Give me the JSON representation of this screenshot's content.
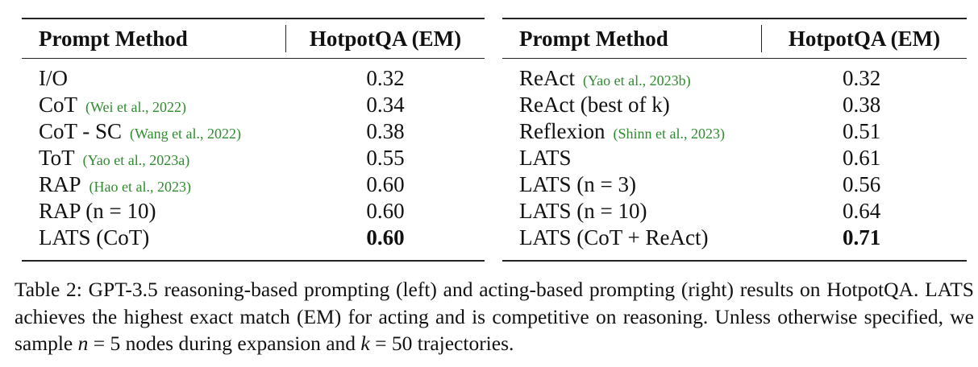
{
  "left_table": {
    "headers": [
      "Prompt Method",
      "HotpotQA (EM)"
    ],
    "rows": [
      {
        "method": "I/O",
        "cite": "",
        "em": "0.32",
        "bold": false
      },
      {
        "method": "CoT",
        "cite": "(Wei et al., 2022)",
        "em": "0.34",
        "bold": false
      },
      {
        "method": "CoT - SC",
        "cite": "(Wang et al., 2022)",
        "em": "0.38",
        "bold": false
      },
      {
        "method": "ToT",
        "cite": "(Yao et al., 2023a)",
        "em": "0.55",
        "bold": false
      },
      {
        "method": "RAP",
        "cite": "(Hao et al., 2023)",
        "em": "0.60",
        "bold": false
      },
      {
        "method": "RAP (n = 10)",
        "cite": "",
        "em": "0.60",
        "bold": false
      },
      {
        "method": "LATS (CoT)",
        "cite": "",
        "em": "0.60",
        "bold": true
      }
    ]
  },
  "right_table": {
    "headers": [
      "Prompt Method",
      "HotpotQA (EM)"
    ],
    "rows": [
      {
        "method": "ReAct",
        "cite": "(Yao et al., 2023b)",
        "em": "0.32",
        "bold": false
      },
      {
        "method": "ReAct (best of k)",
        "cite": "",
        "em": "0.38",
        "bold": false
      },
      {
        "method": "Reflexion",
        "cite": "(Shinn et al., 2023)",
        "em": "0.51",
        "bold": false
      },
      {
        "method": "LATS",
        "cite": "",
        "em": "0.61",
        "bold": false
      },
      {
        "method": "LATS (n = 3)",
        "cite": "",
        "em": "0.56",
        "bold": false
      },
      {
        "method": "LATS (n = 10)",
        "cite": "",
        "em": "0.64",
        "bold": false
      },
      {
        "method": "LATS (CoT + ReAct)",
        "cite": "",
        "em": "0.71",
        "bold": true
      }
    ]
  },
  "caption": {
    "part1": "Table 2: GPT-3.5 reasoning-based prompting (left) and acting-based prompting (right) results on HotpotQA. LATS achieves the highest exact match (EM) for acting and is competitive on reasoning. Unless otherwise specified, we sample ",
    "math1": "n",
    "part2": " = 5 nodes during expansion and ",
    "math2": "k",
    "part3": " = 50 trajectories."
  },
  "colors": {
    "citation": "#2e8b2e",
    "text": "#111111"
  }
}
